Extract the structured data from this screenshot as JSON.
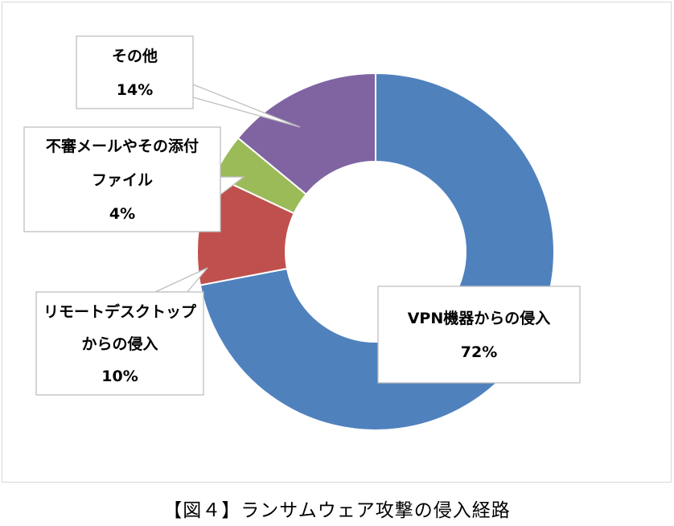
{
  "chart_data": {
    "type": "pie",
    "variant": "donut",
    "series": [
      {
        "label_lines": [
          "VPN機器からの侵入",
          "72%"
        ],
        "value": 72,
        "color": "#4f81bd"
      },
      {
        "label_lines": [
          "リモートデスクトップ",
          "からの侵入",
          "10%"
        ],
        "value": 10,
        "color": "#c0504d"
      },
      {
        "label_lines": [
          "不審メールやその添付",
          "ファイル",
          "4%"
        ],
        "value": 4,
        "color": "#9bbb59"
      },
      {
        "label_lines": [
          "その他",
          "14%"
        ],
        "value": 14,
        "color": "#8064a2"
      }
    ],
    "start_angle": "12 o'clock",
    "direction": "clockwise",
    "labels": "callouts"
  },
  "caption": "【図４】ランサムウェア攻撃の侵入経路"
}
